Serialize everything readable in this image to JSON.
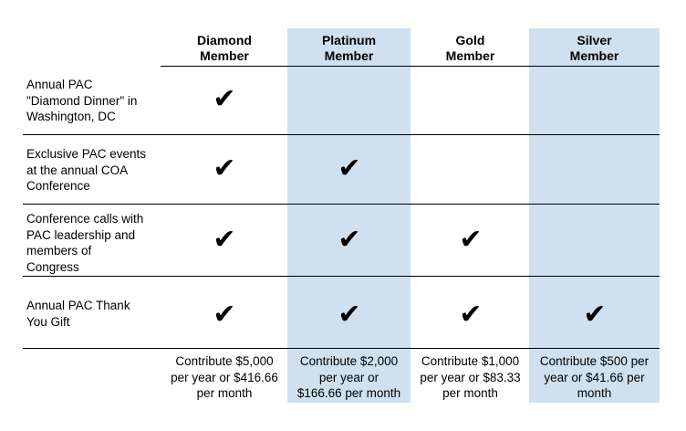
{
  "columns": [
    {
      "header": "Diamond\nMember",
      "price": "Contribute $5,000\nper year or $416.66\nper month"
    },
    {
      "header": "Platinum\nMember",
      "price": "Contribute $2,000\nper year or\n$166.66 per month"
    },
    {
      "header": "Gold\nMember",
      "price": "Contribute $1,000\nper year or $83.33\nper month"
    },
    {
      "header": "Silver\nMember",
      "price": "Contribute $500 per\nyear or $41.66 per\nmonth"
    }
  ],
  "rows": [
    {
      "label": "Annual PAC\n\"Diamond Dinner\" in\nWashington, DC",
      "checks": [
        true,
        false,
        false,
        false
      ]
    },
    {
      "label": "Exclusive PAC events\nat the annual COA\nConference",
      "checks": [
        true,
        true,
        false,
        false
      ]
    },
    {
      "label": "Conference calls with\nPAC leadership and\nmembers of\nCongress",
      "checks": [
        true,
        true,
        true,
        false
      ]
    },
    {
      "label": "Annual PAC Thank\nYou Gift",
      "checks": [
        true,
        true,
        true,
        true
      ]
    }
  ],
  "check_glyph": "✔",
  "highlight_color": "#cfe0f1"
}
